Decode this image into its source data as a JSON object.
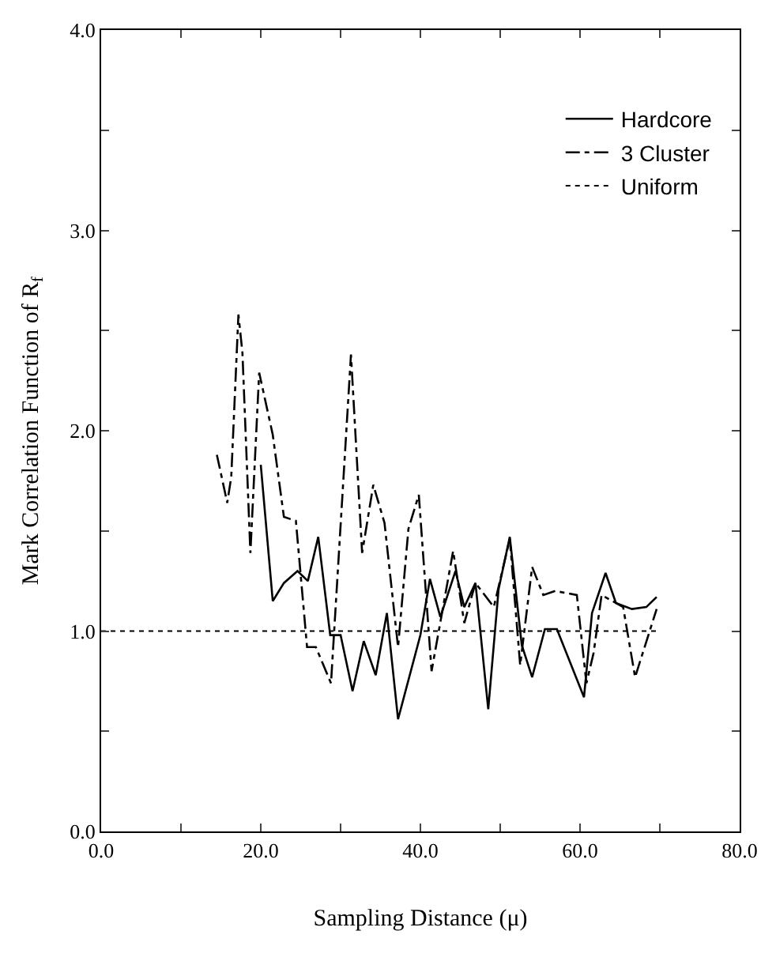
{
  "chart_data": {
    "type": "line",
    "xlabel": "Sampling Distance (μ)",
    "ylabel": "Mark Correlation Function of R$_{f}$",
    "xlim": [
      0,
      80
    ],
    "ylim": [
      0,
      4
    ],
    "xticks": [
      {
        "value": 0,
        "label": "0.0"
      },
      {
        "value": 10,
        "label": null
      },
      {
        "value": 20,
        "label": "20.0"
      },
      {
        "value": 30,
        "label": null
      },
      {
        "value": 40,
        "label": "40.0"
      },
      {
        "value": 50,
        "label": null
      },
      {
        "value": 60,
        "label": "60.0"
      },
      {
        "value": 70,
        "label": null
      },
      {
        "value": 80,
        "label": "80.0"
      }
    ],
    "yticks": [
      {
        "value": 0,
        "label": "0.0"
      },
      {
        "value": 0.5,
        "label": null
      },
      {
        "value": 1,
        "label": "1.0"
      },
      {
        "value": 1.5,
        "label": null
      },
      {
        "value": 2,
        "label": "2.0"
      },
      {
        "value": 2.5,
        "label": null
      },
      {
        "value": 3,
        "label": "3.0"
      },
      {
        "value": 3.5,
        "label": null
      },
      {
        "value": 4,
        "label": "4.0"
      }
    ],
    "grid": false,
    "legend": "top right",
    "marker": "none",
    "series": [
      {
        "name": "Hardcore",
        "color": "#000000",
        "line_style": "solid",
        "x": [
          20.0,
          21.5,
          22.9,
          24.6,
          25.9,
          27.2,
          28.7,
          30.0,
          31.5,
          32.9,
          34.4,
          35.8,
          37.2,
          40.0,
          41.2,
          42.5,
          44.4,
          45.5,
          46.9,
          48.5,
          49.8,
          51.2,
          52.7,
          54.0,
          55.6,
          57.1,
          60.5,
          61.5,
          63.2,
          64.5,
          66.5,
          68.3,
          69.6
        ],
        "values": [
          1.83,
          1.15,
          1.24,
          1.3,
          1.25,
          1.47,
          0.98,
          0.98,
          0.7,
          0.95,
          0.78,
          1.09,
          0.56,
          0.98,
          1.26,
          1.07,
          1.3,
          1.12,
          1.24,
          0.61,
          1.21,
          1.47,
          0.93,
          0.77,
          1.01,
          1.01,
          0.67,
          1.09,
          1.29,
          1.14,
          1.11,
          1.12,
          1.17
        ]
      },
      {
        "name": "3 Cluster",
        "color": "#000000",
        "line_style": "dashdot",
        "x": [
          14.5,
          15.8,
          16.3,
          17.2,
          17.7,
          18.7,
          19.8,
          21.5,
          22.9,
          24.4,
          25.8,
          26.9,
          28.8,
          31.3,
          32.7,
          34.1,
          35.5,
          37.2,
          38.5,
          39.8,
          41.4,
          44.1,
          45.5,
          46.9,
          49.2,
          51.2,
          52.5,
          54.0,
          55.4,
          56.9,
          59.6,
          60.8,
          61.7,
          62.7,
          65.4,
          66.9,
          69.6
        ],
        "values": [
          1.88,
          1.64,
          1.77,
          2.58,
          2.39,
          1.39,
          2.29,
          1.98,
          1.57,
          1.55,
          0.92,
          0.92,
          0.74,
          2.38,
          1.39,
          1.73,
          1.54,
          0.92,
          1.51,
          1.68,
          0.8,
          1.4,
          1.04,
          1.24,
          1.12,
          1.46,
          0.83,
          1.32,
          1.18,
          1.2,
          1.18,
          0.74,
          0.89,
          1.18,
          1.12,
          0.77,
          1.11
        ]
      },
      {
        "name": "Uniform",
        "color": "#000000",
        "line_style": "dotted",
        "x": [
          0,
          70
        ],
        "values": [
          1,
          1
        ]
      }
    ]
  }
}
